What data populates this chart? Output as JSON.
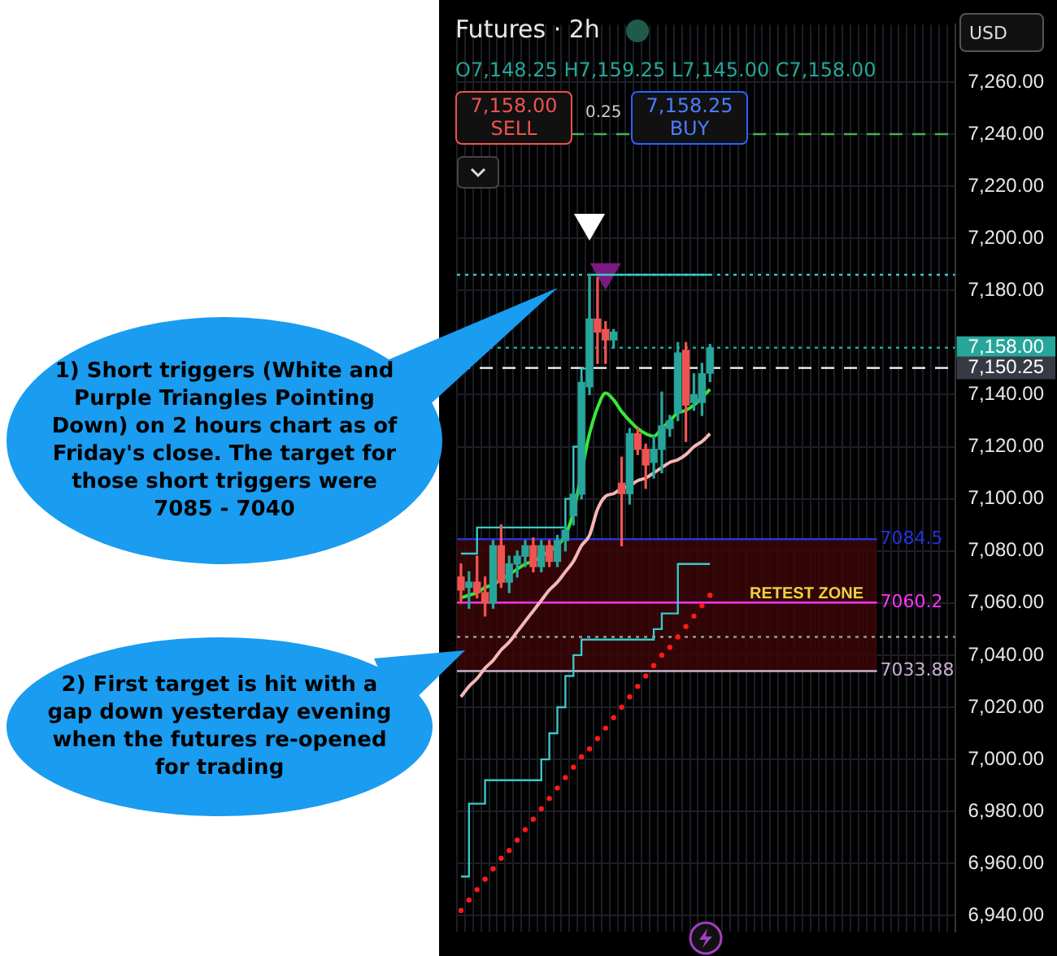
{
  "chart_data": {
    "type": "candlestick",
    "title": "Futures · 2h",
    "categories": [
      null,
      null,
      null,
      null,
      null,
      null,
      null,
      null,
      null,
      null,
      null,
      null,
      null,
      null,
      null,
      null,
      null,
      null,
      null,
      null,
      null,
      null,
      null,
      null,
      null,
      null,
      null,
      null,
      null,
      null,
      null,
      null,
      null,
      null,
      null,
      null,
      null,
      null,
      null,
      null,
      null,
      null,
      null,
      null,
      null,
      null,
      null,
      null,
      null,
      null,
      null,
      null,
      null,
      null,
      null,
      null,
      null,
      null,
      null,
      null,
      null,
      null
    ],
    "ohlc": [
      [
        7070,
        7075,
        7060,
        7065
      ],
      [
        7066,
        7072,
        7058,
        7068
      ],
      [
        7068,
        7078,
        7062,
        7064
      ],
      [
        7064,
        7070,
        7055,
        7060
      ],
      [
        7060,
        7084,
        7058,
        7082
      ],
      [
        7082,
        7090,
        7066,
        7068
      ],
      [
        7068,
        7078,
        7064,
        7075
      ],
      [
        7075,
        7080,
        7070,
        7078
      ],
      [
        7078,
        7084,
        7074,
        7082
      ],
      [
        7082,
        7085,
        7072,
        7074
      ],
      [
        7074,
        7084,
        7072,
        7082
      ],
      [
        7082,
        7084,
        7074,
        7076
      ],
      [
        7076,
        7086,
        7074,
        7084
      ],
      [
        7084,
        7090,
        7080,
        7088
      ],
      [
        7093.5,
        7104,
        7090,
        7101.8
      ],
      [
        7101.8,
        7147,
        7100,
        7144.7
      ],
      [
        7143,
        7186,
        7140,
        7169
      ],
      [
        7169,
        7185,
        7152,
        7164
      ],
      [
        7165,
        7168,
        7152,
        7161
      ],
      [
        7161,
        7165,
        7158,
        7164
      ],
      [
        7106,
        7116,
        7082,
        7102
      ],
      [
        7102,
        7127,
        7098,
        7125
      ],
      [
        7125,
        7127,
        7117,
        7119
      ],
      [
        7119,
        7121,
        7104,
        7113
      ],
      [
        7114,
        7124,
        7108,
        7119
      ],
      [
        7119,
        7141,
        7110,
        7128
      ],
      [
        7127,
        7132,
        7124,
        7130
      ],
      [
        7133,
        7160,
        7130,
        7156
      ],
      [
        7157,
        7160,
        7122,
        7136
      ],
      [
        7137,
        7148,
        7134,
        7140
      ],
      [
        7137,
        7152,
        7132,
        7148
      ],
      [
        7148.25,
        7159.25,
        7145,
        7158
      ],
      null,
      null,
      null,
      null,
      null,
      null,
      null,
      null,
      null,
      null,
      null,
      null,
      null,
      null,
      null,
      null,
      null,
      null,
      null,
      null,
      null,
      null,
      null,
      null,
      null,
      null,
      null,
      null,
      null,
      null
    ],
    "colors": [
      "#ef5350",
      "#26a69a",
      "#ef5350",
      "#ef5350",
      "#26a69a",
      "#ef5350",
      "#26a69a",
      "#26a69a",
      "#26a69a",
      "#ef5350",
      "#26a69a",
      "#ef5350",
      "#26a69a",
      "#26a69a",
      "#26a69a",
      "#26a69a",
      "#26a69a",
      "#ef5350",
      "#ef5350",
      "#26a69a",
      "#ef5350",
      "#26a69a",
      "#ef5350",
      "#ef5350",
      "#26a69a",
      "#26a69a",
      "#26a69a",
      "#26a69a",
      "#ef5350",
      "#26a69a",
      "#26a69a",
      "#26a69a",
      null,
      null,
      null,
      null,
      null,
      null,
      null,
      null,
      null,
      null,
      null,
      null,
      null,
      null,
      null,
      null,
      null,
      null,
      null,
      null,
      null,
      null,
      null,
      null,
      null,
      null,
      null,
      null,
      null,
      null
    ],
    "series": [
      {
        "type": "line",
        "color": "#39e639",
        "values": [
          7062,
          7063,
          7064,
          7066,
          7067,
          7069,
          7071,
          7073,
          7075,
          7076,
          7078,
          7080,
          7082,
          7086,
          7095,
          null,
          7125,
          7135,
          7140.6,
          7138,
          7133.5,
          7130,
          7127,
          7125,
          7124,
          7127,
          7130,
          7133,
          7134,
          7136,
          7139,
          7142,
          null,
          null,
          null,
          null,
          null,
          null,
          null,
          null,
          null,
          null,
          null,
          null,
          null,
          null,
          null,
          null,
          null,
          null,
          null,
          null,
          null,
          null,
          null,
          null,
          null,
          null,
          null,
          null,
          null,
          null
        ]
      },
      {
        "type": "line",
        "color": "#f4b6b6",
        "values": [
          7024,
          7028,
          7031,
          7035,
          7038,
          7042,
          7045,
          7049,
          7053,
          7057,
          7061,
          7065,
          7068,
          7072,
          7076,
          7082,
          7086,
          7096,
          7101,
          7102,
          7104,
          7105,
          7107,
          7108,
          7110,
          7112,
          7114,
          7115,
          7117,
          7120,
          7122,
          7125,
          null,
          null,
          null,
          null,
          null,
          null,
          null,
          null,
          null,
          null,
          null,
          null,
          null,
          null,
          null,
          null,
          null,
          null,
          null,
          null,
          null,
          null,
          null,
          null,
          null,
          null,
          null,
          null,
          null,
          null
        ]
      },
      {
        "type": "step",
        "color": "#3cc8c8",
        "values": [
          7079,
          7079,
          7089,
          7089,
          7089,
          7089,
          7089,
          7089,
          7089,
          7089,
          7089,
          7089,
          7089,
          7100,
          7120,
          7150,
          7186,
          7186,
          7186,
          7186,
          7186,
          7186,
          7186,
          7186,
          7186,
          7186,
          7186,
          7186,
          7186,
          7186,
          7186,
          7186,
          null,
          null,
          null,
          null,
          null,
          null,
          null,
          null,
          null,
          null,
          null,
          null,
          null,
          null,
          null,
          null,
          null,
          null,
          null,
          null,
          null,
          null,
          null,
          null,
          null,
          null,
          null,
          null,
          null,
          null
        ]
      },
      {
        "type": "step",
        "color": "#3cc8c8",
        "values": [
          6955,
          6983,
          6983,
          6992,
          6992,
          6992,
          6992,
          6992,
          6992,
          6992,
          7000,
          7010,
          7020,
          7032,
          7040,
          7046,
          7046,
          7046,
          7046,
          7046,
          7046,
          7046,
          7046,
          7046,
          7050,
          7056,
          7056,
          7075,
          7075,
          7075,
          7075,
          7075,
          null,
          null,
          null,
          null,
          null,
          null,
          null,
          null,
          null,
          null,
          null,
          null,
          null,
          null,
          null,
          null,
          null,
          null,
          null,
          null,
          null,
          null,
          null,
          null,
          null,
          null,
          null,
          null,
          null,
          null
        ]
      },
      {
        "type": "scatter",
        "color": "#ff1a1a",
        "marker": "circle",
        "values": [
          6942,
          6946,
          6950,
          6954,
          6958,
          6962,
          6965,
          6969,
          6973,
          6977,
          6981,
          6985,
          6989,
          6993,
          6997,
          7001,
          7004,
          7008,
          7012,
          7016,
          7020,
          7024,
          7028,
          7032,
          7036,
          7040,
          7043,
          7047,
          7051,
          7055,
          7059,
          7063,
          null,
          null,
          null,
          null,
          null,
          null,
          null,
          null,
          null,
          null,
          null,
          null,
          null,
          null,
          null,
          null,
          null,
          null,
          null,
          null,
          null,
          null,
          null,
          null,
          null,
          null,
          null,
          null,
          null,
          null
        ]
      },
      {
        "type": "scatter",
        "color": "#ffffff",
        "marker": "triangle",
        "values": [
          null,
          null,
          null,
          null,
          null,
          null,
          null,
          null,
          null,
          null,
          null,
          null,
          null,
          null,
          null,
          null,
          7206,
          null,
          null,
          null,
          null,
          null,
          null,
          null,
          null,
          null,
          null,
          null,
          null,
          null,
          null,
          null,
          null,
          null,
          null,
          null,
          null,
          null,
          null,
          null,
          null,
          null,
          null,
          null,
          null,
          null,
          null,
          null,
          null,
          null,
          null,
          null,
          null,
          null,
          null,
          null,
          null,
          null,
          null,
          null,
          null,
          null
        ]
      },
      {
        "type": "scatter",
        "color": "#7b1a80",
        "marker": "triangle",
        "values": [
          null,
          null,
          null,
          null,
          null,
          null,
          null,
          null,
          null,
          null,
          null,
          null,
          null,
          null,
          null,
          null,
          null,
          null,
          7187,
          null,
          null,
          null,
          null,
          null,
          null,
          null,
          null,
          null,
          null,
          null,
          null,
          null,
          null,
          null,
          null,
          null,
          null,
          null,
          null,
          null,
          null,
          null,
          null,
          null,
          null,
          null,
          null,
          null,
          null,
          null,
          null,
          null,
          null,
          null,
          null,
          null,
          null,
          null,
          null,
          null,
          null,
          null
        ]
      }
    ],
    "ylim": [
      6934,
      7282
    ],
    "yticks": [
      {
        "value": 6940,
        "label": "6,940.00"
      },
      {
        "value": 6960,
        "label": "6,960.00"
      },
      {
        "value": 6980,
        "label": "6,980.00"
      },
      {
        "value": 7000,
        "label": "7,000.00"
      },
      {
        "value": 7020,
        "label": "7,020.00"
      },
      {
        "value": 7040,
        "label": "7,040.00"
      },
      {
        "value": 7060,
        "label": "7,060.00"
      },
      {
        "value": 7080,
        "label": "7,080.00"
      },
      {
        "value": 7100,
        "label": "7,100.00"
      },
      {
        "value": 7120,
        "label": "7,120.00"
      },
      {
        "value": 7140,
        "label": "7,140.00"
      },
      {
        "value": 7180,
        "label": "7,180.00"
      },
      {
        "value": 7200,
        "label": "7,200.00"
      },
      {
        "value": 7220,
        "label": "7,220.00"
      },
      {
        "value": 7240,
        "label": "7,240.00"
      },
      {
        "value": 7260,
        "label": "7,260.00"
      }
    ],
    "tick_labels": "y",
    "grid": true,
    "ref_lines": [
      {
        "axis": "y",
        "value": 7240,
        "color": "#4caf50",
        "line_style": "dashed"
      },
      {
        "axis": "y",
        "value": 7186,
        "color": "#3cc8c8",
        "line_style": "dotted"
      },
      {
        "axis": "y",
        "value": 7158,
        "label": "7,158.00",
        "color": "#26a69a",
        "line_style": "dotted"
      },
      {
        "axis": "y",
        "value": 7150.25,
        "label": "7,150.25",
        "color": "#ffffff",
        "line_style": "dashed"
      },
      {
        "axis": "y",
        "value": 7084.5,
        "label": "7084.5",
        "color": "#2233dd",
        "line_style": "solid"
      },
      {
        "axis": "y",
        "value": 7060.2,
        "label": "7060.2",
        "color": "#ff33ff",
        "line_style": "solid"
      },
      {
        "axis": "y",
        "value": 7047,
        "color": "#9a9a9a",
        "line_style": "dotted"
      },
      {
        "axis": "y",
        "value": 7033.88,
        "label": "7033.88",
        "color": "#c8b0d0",
        "line_style": "solid"
      }
    ],
    "bands": [
      {
        "axis": "y",
        "from": 7033.88,
        "to": 7084.5,
        "label": "RETEST ZONE",
        "color": "#3a0606"
      }
    ],
    "annotations": [
      "O7,148.25 H7,159.25 L7,145.00 C7,158.00",
      "7,158.00",
      "SELL",
      "0.25",
      "7,158.25",
      "BUY",
      "USD",
      "1) Short triggers (White and Purple Triangles Pointing Down) on 2 hours chart as of Friday's close.  The target for those short triggers were 7085 - 7040",
      "2) First target is hit with a gap down yesterday evening when the futures re-opened for trading"
    ]
  }
}
